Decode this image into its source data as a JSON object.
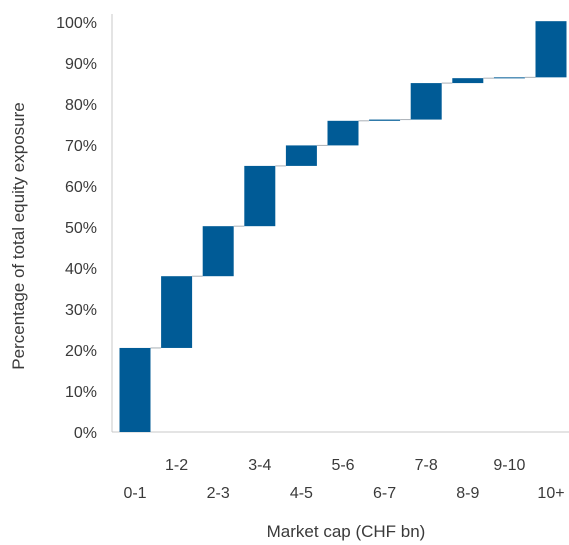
{
  "chart_data": {
    "type": "waterfall",
    "title": "",
    "xlabel": "Market cap (CHF bn)",
    "ylabel": "Percentage of total equity exposure",
    "ylim": [
      0,
      100
    ],
    "y_ticks": [
      "0%",
      "10%",
      "20%",
      "30%",
      "40%",
      "50%",
      "60%",
      "70%",
      "80%",
      "90%",
      "100%"
    ],
    "categories": [
      "0-1",
      "1-2",
      "2-3",
      "3-4",
      "4-5",
      "5-6",
      "6-7",
      "7-8",
      "8-9",
      "9-10",
      "10+"
    ],
    "values": [
      20.5,
      17.5,
      12.2,
      14.7,
      5.0,
      6.0,
      0.3,
      8.9,
      1.2,
      0.2,
      13.7
    ],
    "cumulative_end": [
      20.5,
      38.0,
      50.2,
      64.9,
      69.9,
      75.9,
      76.2,
      85.1,
      86.3,
      86.5,
      100.2
    ],
    "grid": false,
    "colors": {
      "bar": "#005b96",
      "connector": "#aab0b6",
      "axis": "#c8c8c8"
    }
  }
}
